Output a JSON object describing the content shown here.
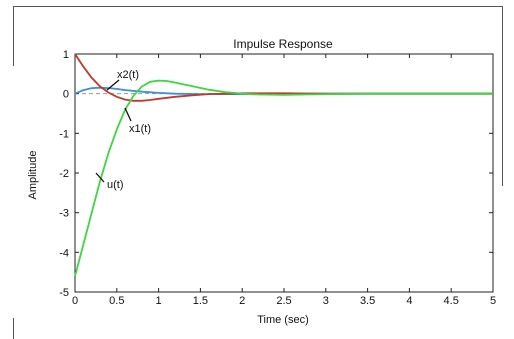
{
  "chart_data": {
    "type": "line",
    "title": "Impulse Response",
    "xlabel": "Time (sec)",
    "ylabel": "Amplitude",
    "xlim": [
      0,
      5
    ],
    "ylim": [
      -5,
      1
    ],
    "xticks": [
      0,
      0.5,
      1,
      1.5,
      2,
      2.5,
      3,
      3.5,
      4,
      4.5,
      5
    ],
    "xtick_labels": [
      "0",
      "0.5",
      "1",
      "1.5",
      "2",
      "2.5",
      "3",
      "3.5",
      "4",
      "4.5",
      "5"
    ],
    "yticks": [
      1,
      0,
      -1,
      -2,
      -3,
      -4,
      -5
    ],
    "ytick_labels": [
      "1",
      "0",
      "-1",
      "-2",
      "-3",
      "-4",
      "-5"
    ],
    "grid": false,
    "reference_line": {
      "y": 0,
      "style": "dashed",
      "color": "#999999"
    },
    "series": [
      {
        "name": "x1(t)",
        "color": "#c0392b",
        "x": [
          0,
          0.1,
          0.2,
          0.3,
          0.4,
          0.5,
          0.6,
          0.7,
          0.8,
          0.9,
          1.0,
          1.2,
          1.4,
          1.6,
          1.8,
          2.0,
          2.5,
          3.0,
          3.5,
          4.0,
          4.5,
          5.0
        ],
        "y": [
          1.0,
          0.68,
          0.4,
          0.18,
          0.03,
          -0.08,
          -0.15,
          -0.18,
          -0.18,
          -0.16,
          -0.13,
          -0.08,
          -0.04,
          -0.01,
          0.0,
          0.01,
          0.01,
          0.0,
          0.0,
          0.0,
          0.0,
          0.0
        ]
      },
      {
        "name": "x2(t)",
        "color": "#3a8fd9",
        "x": [
          0,
          0.1,
          0.2,
          0.3,
          0.4,
          0.5,
          0.6,
          0.8,
          1.0,
          1.2,
          1.5,
          2.0,
          2.5,
          3.0,
          4.0,
          5.0
        ],
        "y": [
          0.0,
          0.09,
          0.14,
          0.15,
          0.14,
          0.12,
          0.09,
          0.05,
          0.02,
          0.0,
          -0.01,
          -0.01,
          0.0,
          0.0,
          0.0,
          0.0
        ]
      },
      {
        "name": "u(t)",
        "color": "#3ed63e",
        "x": [
          0,
          0.05,
          0.1,
          0.2,
          0.3,
          0.4,
          0.5,
          0.6,
          0.7,
          0.8,
          0.9,
          1.0,
          1.1,
          1.2,
          1.4,
          1.6,
          1.8,
          2.0,
          2.2,
          2.5,
          3.0,
          3.5,
          4.0,
          4.5,
          5.0
        ],
        "y": [
          -4.6,
          -4.2,
          -3.8,
          -3.0,
          -2.2,
          -1.5,
          -0.9,
          -0.4,
          -0.05,
          0.18,
          0.3,
          0.33,
          0.32,
          0.28,
          0.19,
          0.1,
          0.04,
          0.0,
          -0.02,
          -0.03,
          -0.01,
          0.0,
          0.0,
          0.0,
          0.0
        ]
      }
    ],
    "annotations": [
      {
        "text": "x2(t)",
        "target_series": "x2(t)"
      },
      {
        "text": "x1(t)",
        "target_series": "x1(t)"
      },
      {
        "text": "u(t)",
        "target_series": "u(t)"
      }
    ]
  }
}
